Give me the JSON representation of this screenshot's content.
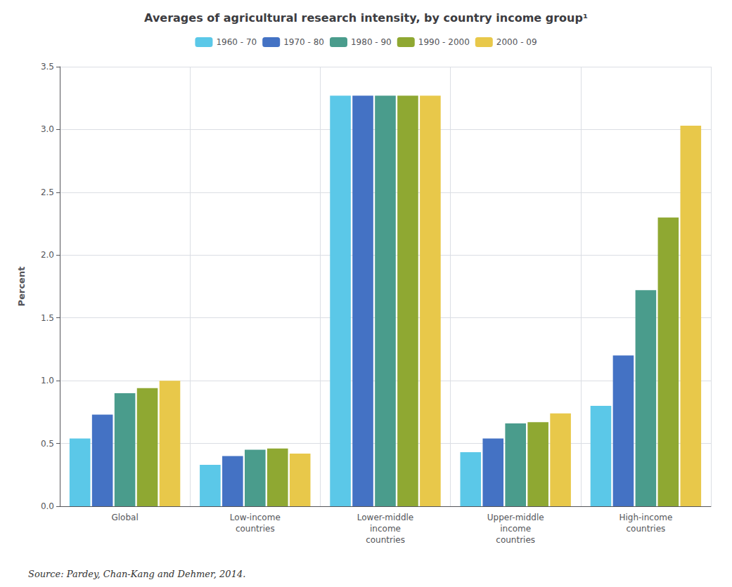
{
  "chart_data": {
    "type": "bar",
    "title": "Averages of agricultural research intensity, by country income group¹",
    "y_label": "Percent",
    "annotations": [
      "Source: Pardey, Chan-Kang and Dehmer, 2014."
    ],
    "categories": [
      "Global",
      "Low-income\ncountries",
      "Lower-middle\nincome\ncountries",
      "Upper-middle\nincome\ncountries",
      "High-income\ncountries"
    ],
    "series": [
      {
        "name": "1960 - 70",
        "color": "#5BC8E8",
        "values": [
          0.54,
          0.33,
          3.27,
          0.43,
          0.8
        ]
      },
      {
        "name": "1970 - 80",
        "color": "#4472C4",
        "values": [
          0.73,
          0.4,
          3.27,
          0.54,
          1.2
        ]
      },
      {
        "name": "1980 - 90",
        "color": "#4A9C8C",
        "values": [
          0.9,
          0.45,
          3.27,
          0.66,
          1.72
        ]
      },
      {
        "name": "1990 - 2000",
        "color": "#8FA832",
        "values": [
          0.94,
          0.46,
          3.27,
          0.67,
          2.3
        ]
      },
      {
        "name": "2000 - 09",
        "color": "#E8C84A",
        "values": [
          1.0,
          0.42,
          3.27,
          0.74,
          3.03
        ]
      }
    ],
    "ylim": [
      0,
      3.5
    ],
    "yticks": [
      {
        "value": 0,
        "label": "0.0"
      },
      0.5,
      {
        "value": 1,
        "label": "1.0"
      },
      1.5,
      {
        "value": 2,
        "label": "2.0"
      },
      2.5,
      {
        "value": 3,
        "label": "3.0"
      },
      3.5
    ],
    "grid": true,
    "legend": "top"
  }
}
